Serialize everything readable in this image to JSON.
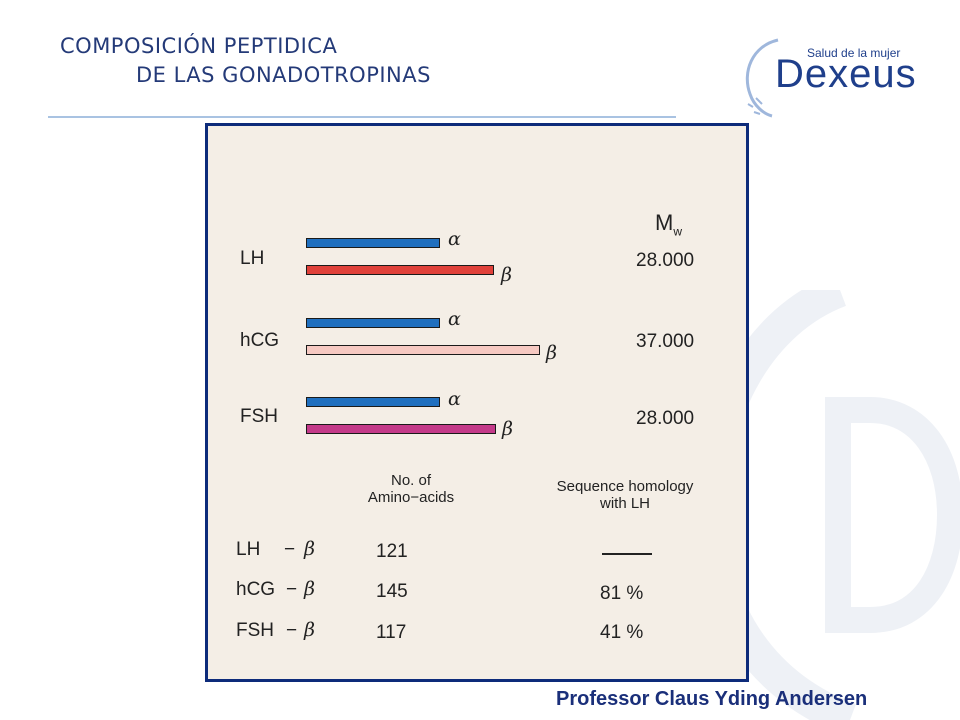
{
  "title": {
    "line1": "COMPOSICIÓN PEPTIDICA",
    "line2": "DE LAS GONADOTROPINAS"
  },
  "logo": {
    "tagline": "Salud de la mujer",
    "wordmark": "Dexeus",
    "accent": "#1f3f8b"
  },
  "slide": {
    "mw_header": "M",
    "mw_sub": "w",
    "hormones": [
      {
        "name": "LH",
        "mw": "28.000",
        "alpha_label": "α",
        "beta_label": "β",
        "alpha_color": "#1f6fbf",
        "beta_color": "#e0413a"
      },
      {
        "name": "hCG",
        "mw": "37.000",
        "alpha_label": "α",
        "beta_label": "β",
        "alpha_color": "#1f6fbf",
        "beta_color": "#f6c9c2"
      },
      {
        "name": "FSH",
        "mw": "28.000",
        "alpha_label": "α",
        "beta_label": "β",
        "alpha_color": "#1f6fbf",
        "beta_color": "#c43a8a"
      }
    ],
    "table": {
      "col_aa_line1": "No. of",
      "col_aa_line2": "Amino−acids",
      "col_hom_line1": "Sequence homology",
      "col_hom_line2": "with LH",
      "rows": [
        {
          "name": "LH",
          "dash": "−",
          "beta": "β",
          "aa": "121",
          "homology": ""
        },
        {
          "name": "hCG",
          "dash": "−",
          "beta": "β",
          "aa": "145",
          "homology": "81 %"
        },
        {
          "name": "FSH",
          "dash": "−",
          "beta": "β",
          "aa": "117",
          "homology": "41 %"
        }
      ]
    }
  },
  "footer": "Professor Claus Yding Andersen"
}
